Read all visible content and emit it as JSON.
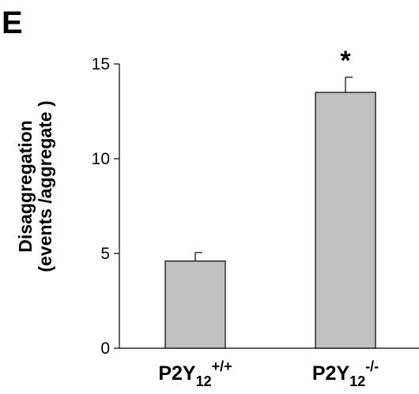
{
  "panel_label": "E",
  "chart_data": {
    "type": "bar",
    "ylabel_line1": "Disaggregation",
    "ylabel_line2": "(events /aggregate )",
    "ylim": [
      0,
      15
    ],
    "yticks": [
      "0",
      "5",
      "10",
      "15"
    ],
    "categories": [
      {
        "base": "P2Y",
        "sub": "12",
        "sup": "+/+"
      },
      {
        "base": "P2Y",
        "sub": "12",
        "sup": "-/-"
      }
    ],
    "values": [
      4.6,
      13.5
    ],
    "errors": [
      0.45,
      0.8
    ],
    "annotations": [
      "",
      "*"
    ],
    "bar_color": "#c0c0c0",
    "grid": false
  }
}
